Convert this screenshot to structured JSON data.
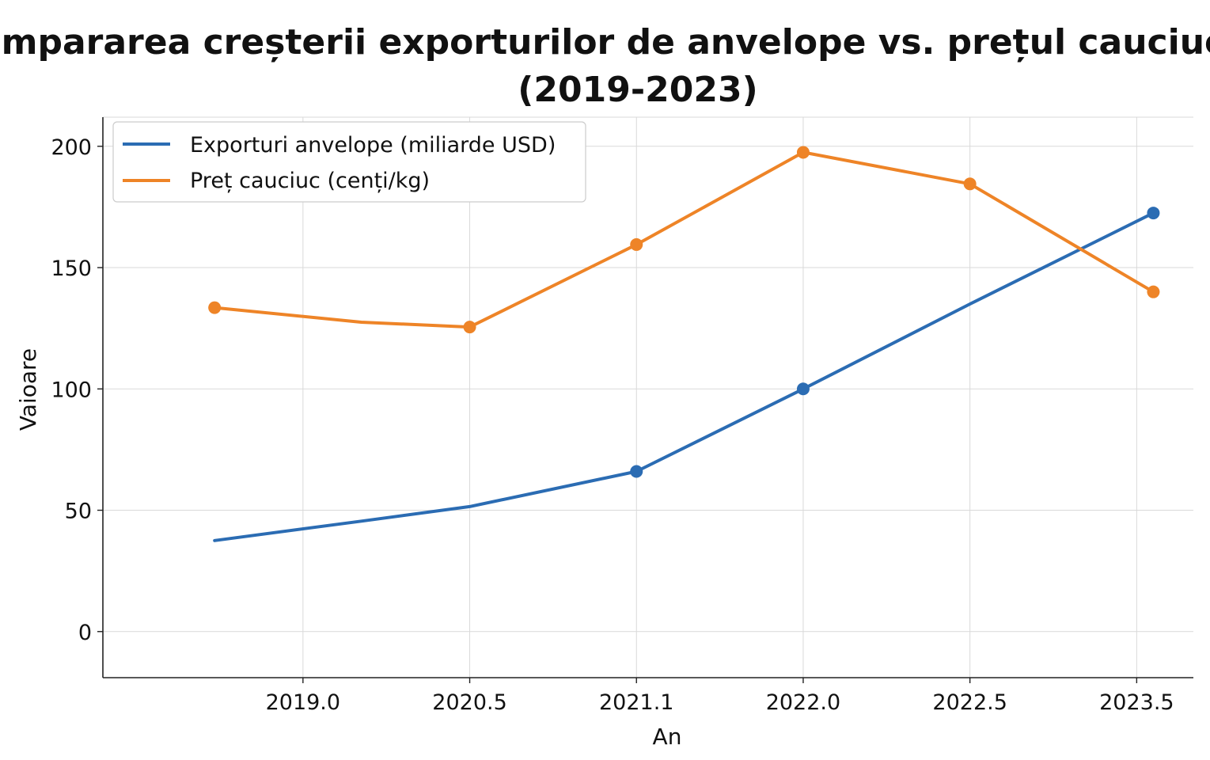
{
  "chart_data": {
    "type": "line",
    "title": "Compararea creșterii exporturilor de anvelope vs. prețul cauciucului",
    "subtitle": "(2019-2023)",
    "xlabel": "An",
    "ylabel": "Vaioare",
    "x_tick_labels": [
      "2019.0",
      "2020.5",
      "2021.1",
      "2022.0",
      "2022.5",
      "2023.5"
    ],
    "y_ticks": [
      0,
      50,
      100,
      150,
      200
    ],
    "ylim": [
      -19,
      212
    ],
    "x_tick_positions": [
      0.5,
      1.5,
      2.5,
      3.5,
      4.5,
      5.5
    ],
    "xlim": [
      -0.7,
      5.84
    ],
    "grid": true,
    "legend": "top-left",
    "series": [
      {
        "name": "Exporturi anvelope (miliarde USD)",
        "color": "#2b6cb3",
        "x": [
          -0.03,
          0.85,
          1.5,
          2.5,
          3.5,
          4.5,
          5.6
        ],
        "y": [
          37.5,
          45.5,
          51.5,
          66,
          100,
          135,
          172.5
        ],
        "markers": [
          false,
          false,
          false,
          true,
          true,
          false,
          true
        ]
      },
      {
        "name": "Preț cauciuc (cenți/kg)",
        "color": "#ee8427",
        "x": [
          -0.03,
          0.85,
          1.5,
          2.5,
          3.5,
          4.5,
          5.6
        ],
        "y": [
          133.5,
          127.5,
          125.5,
          159.5,
          197.5,
          184.5,
          140
        ],
        "markers": [
          true,
          false,
          true,
          true,
          true,
          true,
          true
        ]
      }
    ]
  }
}
